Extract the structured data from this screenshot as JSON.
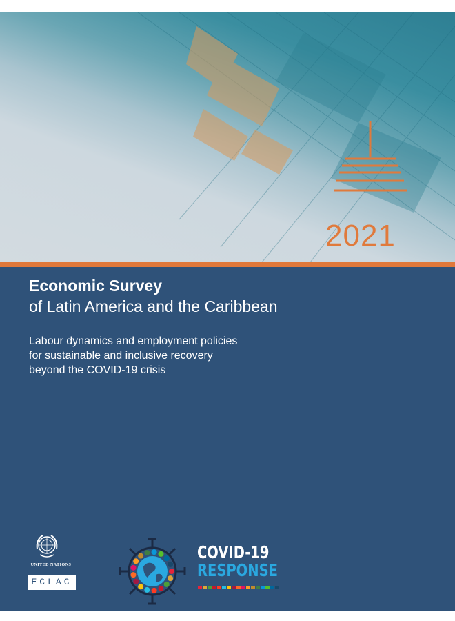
{
  "cover": {
    "year": "2021",
    "title_main": "Economic Survey",
    "title_sub": "of Latin America and the Caribbean",
    "subtitle_lines": [
      "Labour dynamics and employment policies",
      "for sustainable and inclusive recovery",
      "beyond the COVID-19 crisis"
    ]
  },
  "logos": {
    "un_text": "UNITED NATIONS",
    "eclac": "ECLAC",
    "covid_line1": "COVID-19",
    "covid_line2": "RESPONSE"
  },
  "colors": {
    "panel": "#2f5279",
    "accent_orange": "#e0783a",
    "covid_blue": "#2aa8e0",
    "sdg": [
      "#e5243b",
      "#dda63a",
      "#4c9f38",
      "#c5192d",
      "#ff3a21",
      "#26bde2",
      "#fcc30b",
      "#a21942",
      "#fd6925",
      "#dd1367",
      "#fd9d24",
      "#bf8b2e",
      "#3f7e44",
      "#0a97d9",
      "#56c02b",
      "#00689d",
      "#19486a"
    ]
  },
  "icons": [
    "un-emblem-icon",
    "covid-virus-ring-icon",
    "orange-tower-icon"
  ]
}
